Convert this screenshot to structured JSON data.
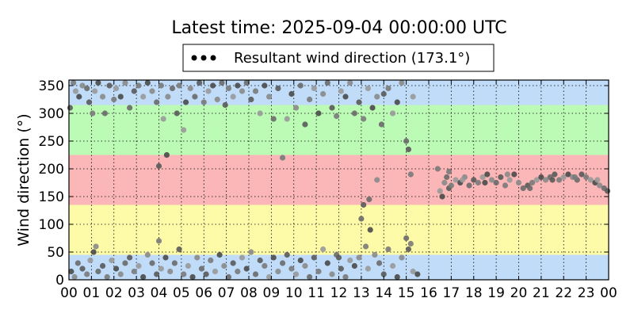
{
  "chart_data": {
    "type": "scatter",
    "title": "Latest time: 2025-09-04 00:00:00 UTC",
    "xlabel": "",
    "ylabel": "Wind direction (°)",
    "xlim": [
      0,
      24
    ],
    "ylim": [
      0,
      360
    ],
    "grid": true,
    "legend": {
      "placement": "top-center",
      "entries": [
        "Resultant wind direction (173.1°)"
      ]
    },
    "x_ticks": [
      "00",
      "01",
      "02",
      "03",
      "04",
      "05",
      "06",
      "07",
      "08",
      "09",
      "10",
      "11",
      "12",
      "13",
      "14",
      "15",
      "16",
      "17",
      "18",
      "19",
      "20",
      "21",
      "22",
      "23",
      "00"
    ],
    "y_ticks": [
      0,
      50,
      100,
      150,
      200,
      250,
      300,
      350
    ],
    "direction_bands": [
      {
        "from": 0,
        "to": 45,
        "color": "#c0dcf8"
      },
      {
        "from": 45,
        "to": 135,
        "color": "#fdfba8"
      },
      {
        "from": 135,
        "to": 225,
        "color": "#fbb7b7"
      },
      {
        "from": 225,
        "to": 315,
        "color": "#bcfbb6"
      },
      {
        "from": 315,
        "to": 360,
        "color": "#c0dcf8"
      }
    ],
    "series": [
      {
        "name": "Resultant wind direction (173.1°)",
        "color": "#6a6a6a",
        "points": [
          [
            0.05,
            310
          ],
          [
            0.2,
            355
          ],
          [
            0.3,
            340
          ],
          [
            0.45,
            330
          ],
          [
            0.6,
            350
          ],
          [
            0.8,
            345
          ],
          [
            0.9,
            320
          ],
          [
            1.05,
            300
          ],
          [
            1.15,
            340
          ],
          [
            1.3,
            355
          ],
          [
            1.5,
            330
          ],
          [
            1.6,
            300
          ],
          [
            1.8,
            350
          ],
          [
            2.0,
            325
          ],
          [
            2.1,
            345
          ],
          [
            2.3,
            330
          ],
          [
            2.5,
            355
          ],
          [
            2.7,
            310
          ],
          [
            2.9,
            340
          ],
          [
            3.1,
            350
          ],
          [
            3.3,
            330
          ],
          [
            3.5,
            355
          ],
          [
            3.7,
            340
          ],
          [
            3.9,
            320
          ],
          [
            4.0,
            205
          ],
          [
            4.1,
            350
          ],
          [
            4.2,
            290
          ],
          [
            4.35,
            225
          ],
          [
            4.4,
            330
          ],
          [
            4.6,
            345
          ],
          [
            4.8,
            300
          ],
          [
            4.9,
            350
          ],
          [
            5.1,
            270
          ],
          [
            5.2,
            320
          ],
          [
            5.4,
            345
          ],
          [
            5.6,
            330
          ],
          [
            5.8,
            355
          ],
          [
            6.0,
            320
          ],
          [
            6.2,
            340
          ],
          [
            6.4,
            350
          ],
          [
            6.6,
            325
          ],
          [
            6.8,
            355
          ],
          [
            6.95,
            315
          ],
          [
            7.1,
            345
          ],
          [
            7.3,
            330
          ],
          [
            7.5,
            350
          ],
          [
            7.7,
            340
          ],
          [
            7.9,
            355
          ],
          [
            8.1,
            325
          ],
          [
            8.3,
            340
          ],
          [
            8.5,
            300
          ],
          [
            8.7,
            350
          ],
          [
            8.9,
            330
          ],
          [
            9.1,
            290
          ],
          [
            9.3,
            345
          ],
          [
            9.5,
            220
          ],
          [
            9.7,
            290
          ],
          [
            9.9,
            335
          ],
          [
            10.1,
            310
          ],
          [
            10.3,
            350
          ],
          [
            10.5,
            280
          ],
          [
            10.7,
            325
          ],
          [
            10.9,
            345
          ],
          [
            11.1,
            300
          ],
          [
            11.3,
            335
          ],
          [
            11.5,
            355
          ],
          [
            11.7,
            310
          ],
          [
            11.9,
            295
          ],
          [
            12.1,
            340
          ],
          [
            12.3,
            330
          ],
          [
            12.5,
            355
          ],
          [
            12.7,
            300
          ],
          [
            12.9,
            320
          ],
          [
            13.1,
            290
          ],
          [
            13.3,
            345
          ],
          [
            13.5,
            310
          ],
          [
            13.7,
            330
          ],
          [
            13.9,
            280
          ],
          [
            14.0,
            335
          ],
          [
            14.2,
            345
          ],
          [
            14.4,
            300
          ],
          [
            14.6,
            320
          ],
          [
            14.8,
            355
          ],
          [
            15.0,
            250
          ],
          [
            15.1,
            235
          ],
          [
            15.2,
            190
          ],
          [
            15.3,
            330
          ],
          [
            0.1,
            15
          ],
          [
            0.25,
            5
          ],
          [
            0.4,
            30
          ],
          [
            0.6,
            20
          ],
          [
            0.8,
            10
          ],
          [
            0.95,
            35
          ],
          [
            1.1,
            50
          ],
          [
            1.2,
            60
          ],
          [
            1.3,
            15
          ],
          [
            1.5,
            25
          ],
          [
            1.7,
            5
          ],
          [
            1.9,
            35
          ],
          [
            2.1,
            20
          ],
          [
            2.3,
            10
          ],
          [
            2.5,
            30
          ],
          [
            2.7,
            40
          ],
          [
            2.9,
            15
          ],
          [
            3.1,
            25
          ],
          [
            3.3,
            5
          ],
          [
            3.5,
            45
          ],
          [
            3.7,
            30
          ],
          [
            3.9,
            10
          ],
          [
            4.0,
            70
          ],
          [
            4.1,
            20
          ],
          [
            4.3,
            40
          ],
          [
            4.5,
            15
          ],
          [
            4.7,
            30
          ],
          [
            4.9,
            55
          ],
          [
            5.1,
            10
          ],
          [
            5.3,
            25
          ],
          [
            5.5,
            5
          ],
          [
            5.7,
            40
          ],
          [
            5.9,
            20
          ],
          [
            6.1,
            10
          ],
          [
            6.3,
            35
          ],
          [
            6.5,
            15
          ],
          [
            6.7,
            45
          ],
          [
            6.9,
            25
          ],
          [
            7.1,
            5
          ],
          [
            7.3,
            30
          ],
          [
            7.5,
            15
          ],
          [
            7.7,
            40
          ],
          [
            7.9,
            20
          ],
          [
            8.1,
            50
          ],
          [
            8.3,
            10
          ],
          [
            8.5,
            35
          ],
          [
            8.7,
            25
          ],
          [
            8.9,
            5
          ],
          [
            9.1,
            40
          ],
          [
            9.3,
            15
          ],
          [
            9.5,
            30
          ],
          [
            9.7,
            45
          ],
          [
            9.9,
            20
          ],
          [
            10.1,
            10
          ],
          [
            10.3,
            35
          ],
          [
            10.5,
            25
          ],
          [
            10.7,
            5
          ],
          [
            10.9,
            40
          ],
          [
            11.1,
            15
          ],
          [
            11.3,
            55
          ],
          [
            11.5,
            30
          ],
          [
            11.7,
            10
          ],
          [
            11.9,
            45
          ],
          [
            12.1,
            20
          ],
          [
            12.3,
            5
          ],
          [
            12.5,
            35
          ],
          [
            12.7,
            25
          ],
          [
            12.9,
            40
          ],
          [
            13.0,
            110
          ],
          [
            13.1,
            135
          ],
          [
            13.2,
            60
          ],
          [
            13.3,
            20
          ],
          [
            13.4,
            90
          ],
          [
            13.6,
            45
          ],
          [
            13.8,
            30
          ],
          [
            14.0,
            10
          ],
          [
            14.2,
            55
          ],
          [
            14.4,
            25
          ],
          [
            14.6,
            5
          ],
          [
            14.8,
            40
          ],
          [
            15.0,
            75
          ],
          [
            15.1,
            55
          ],
          [
            15.2,
            65
          ],
          [
            15.3,
            15
          ],
          [
            15.5,
            10
          ],
          [
            13.7,
            180
          ],
          [
            13.35,
            145
          ],
          [
            12.0,
            40
          ],
          [
            16.4,
            200
          ],
          [
            16.5,
            160
          ],
          [
            16.6,
            150
          ],
          [
            16.7,
            175
          ],
          [
            16.8,
            185
          ],
          [
            16.9,
            165
          ],
          [
            17.0,
            170
          ],
          [
            17.2,
            180
          ],
          [
            17.4,
            175
          ],
          [
            17.6,
            185
          ],
          [
            17.8,
            170
          ],
          [
            18.0,
            180
          ],
          [
            18.2,
            175
          ],
          [
            18.4,
            185
          ],
          [
            18.6,
            190
          ],
          [
            18.8,
            180
          ],
          [
            19.0,
            175
          ],
          [
            19.2,
            185
          ],
          [
            19.4,
            170
          ],
          [
            19.6,
            180
          ],
          [
            19.8,
            190
          ],
          [
            20.0,
            175
          ],
          [
            20.2,
            165
          ],
          [
            20.4,
            170
          ],
          [
            20.6,
            175
          ],
          [
            20.8,
            180
          ],
          [
            21.0,
            185
          ],
          [
            21.2,
            180
          ],
          [
            21.4,
            185
          ],
          [
            21.6,
            190
          ],
          [
            21.8,
            180
          ],
          [
            22.0,
            185
          ],
          [
            22.2,
            190
          ],
          [
            22.4,
            185
          ],
          [
            22.6,
            180
          ],
          [
            22.8,
            190
          ],
          [
            23.0,
            185
          ],
          [
            23.2,
            180
          ],
          [
            23.4,
            175
          ],
          [
            23.6,
            170
          ],
          [
            23.8,
            165
          ],
          [
            23.95,
            160
          ],
          [
            16.9,
            195
          ],
          [
            17.5,
            180
          ],
          [
            18.5,
            175
          ],
          [
            19.5,
            190
          ],
          [
            20.5,
            165
          ],
          [
            21.5,
            180
          ],
          [
            22.5,
            185
          ],
          [
            23.5,
            180
          ]
        ]
      }
    ]
  }
}
